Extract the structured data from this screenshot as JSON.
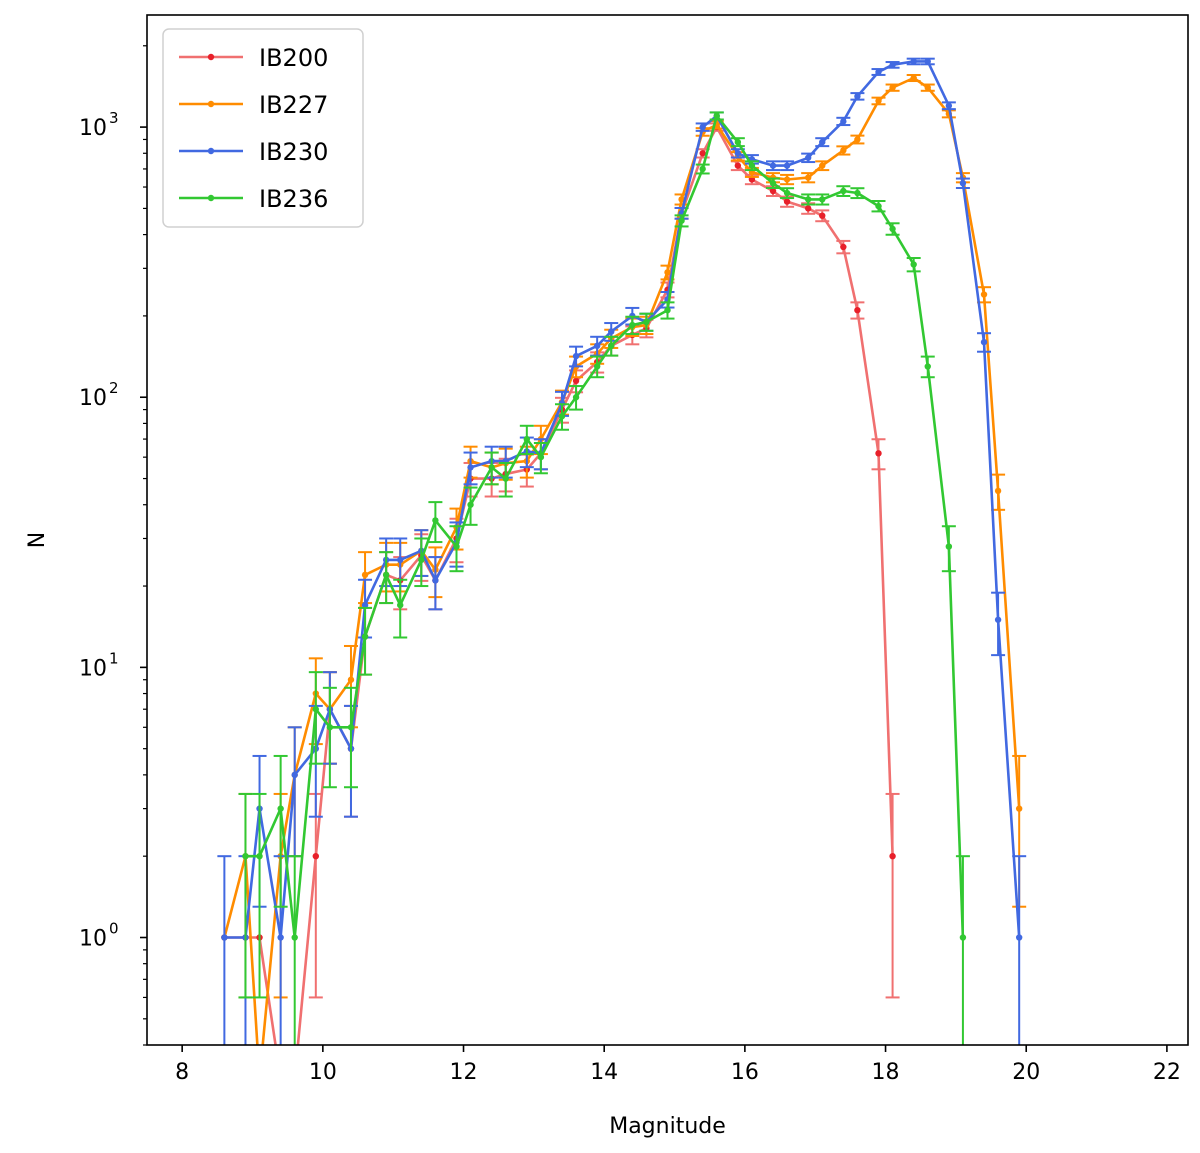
{
  "chart_data": {
    "type": "line",
    "title": "",
    "xlabel": "Magnitude",
    "ylabel": "N",
    "xlim": [
      7.5,
      22.3
    ],
    "ylim": [
      0.4,
      2600
    ],
    "yscale": "log",
    "grid": false,
    "legend_position": "top-left",
    "xticks": [
      "8",
      "10",
      "12",
      "14",
      "16",
      "18",
      "20",
      "22"
    ],
    "yticks": [
      {
        "value": 1,
        "base": "10",
        "exp": "0"
      },
      {
        "value": 10,
        "base": "10",
        "exp": "1"
      },
      {
        "value": 100,
        "base": "10",
        "exp": "2"
      },
      {
        "value": 1000,
        "base": "10",
        "exp": "3"
      }
    ],
    "series": [
      {
        "name": "IB200",
        "color": "#f07070",
        "marker_color": "#e8202a",
        "x": [
          8.6,
          8.9,
          9.1,
          9.4,
          9.6,
          9.9,
          10.1,
          10.4,
          10.6,
          10.9,
          11.1,
          11.4,
          11.6,
          11.9,
          12.1,
          12.4,
          12.6,
          12.9,
          13.1,
          13.4,
          13.6,
          13.9,
          14.1,
          14.4,
          14.6,
          14.9,
          15.1,
          15.4,
          15.6,
          15.9,
          16.1,
          16.4,
          16.6,
          16.9,
          17.1,
          17.4,
          17.6,
          17.9,
          18.1
        ],
        "y": [
          1,
          1,
          1,
          0.3,
          0.3,
          2,
          7,
          5,
          13,
          22,
          21,
          26,
          21,
          30,
          50,
          50,
          52,
          54,
          62,
          90,
          115,
          135,
          155,
          170,
          180,
          250,
          480,
          800,
          1000,
          720,
          640,
          580,
          530,
          500,
          470,
          360,
          210,
          62,
          2
        ],
        "y_err": [
          0,
          0,
          0,
          0,
          0,
          1.4,
          2.6,
          2.2,
          3.6,
          4.7,
          4.6,
          5.1,
          4.6,
          5.5,
          7.1,
          7.1,
          7.2,
          7.3,
          7.9,
          9.5,
          10.7,
          11.6,
          12.4,
          13.0,
          13.4,
          15.8,
          21.9,
          28.3,
          31.6,
          26.8,
          25.3,
          24.1,
          23.0,
          22.4,
          21.7,
          19.0,
          14.5,
          7.9,
          1.4
        ]
      },
      {
        "name": "IB227",
        "color": "#ff8c00",
        "marker_color": "#ff8c00",
        "x": [
          8.6,
          8.9,
          9.1,
          9.4,
          9.6,
          9.9,
          10.1,
          10.4,
          10.6,
          10.9,
          11.1,
          11.4,
          11.6,
          11.9,
          12.1,
          12.4,
          12.6,
          12.9,
          13.1,
          13.4,
          13.6,
          13.9,
          14.1,
          14.4,
          14.6,
          14.9,
          15.1,
          15.4,
          15.6,
          15.9,
          16.1,
          16.4,
          16.6,
          16.9,
          17.1,
          17.4,
          17.6,
          17.9,
          18.1,
          18.4,
          18.6,
          18.9,
          19.1,
          19.4,
          19.6,
          19.9
        ],
        "y": [
          1,
          2,
          0.3,
          2,
          4,
          8,
          7,
          9,
          22,
          24,
          24,
          27,
          23,
          33,
          58,
          55,
          57,
          58,
          70,
          96,
          130,
          145,
          165,
          182,
          185,
          290,
          540,
          960,
          1020,
          780,
          680,
          650,
          640,
          650,
          720,
          820,
          900,
          1250,
          1400,
          1520,
          1400,
          1120,
          650,
          240,
          45,
          3
        ],
        "y_err": [
          0,
          1.4,
          0,
          1.4,
          2,
          2.8,
          2.6,
          3,
          4.7,
          4.9,
          4.9,
          5.2,
          4.8,
          5.7,
          7.6,
          7.4,
          7.5,
          7.6,
          8.4,
          9.8,
          11.4,
          12,
          12.8,
          13.5,
          13.6,
          17,
          23.2,
          31,
          31.9,
          27.9,
          26.1,
          25.5,
          25.3,
          25.5,
          26.8,
          28.6,
          30,
          35.4,
          37.4,
          39,
          37.4,
          33.5,
          25.5,
          15.5,
          6.7,
          1.7
        ]
      },
      {
        "name": "IB230",
        "color": "#4169e1",
        "marker_color": "#4169e1",
        "x": [
          8.6,
          8.9,
          9.1,
          9.4,
          9.6,
          9.9,
          10.1,
          10.4,
          10.6,
          10.9,
          11.1,
          11.4,
          11.6,
          11.9,
          12.1,
          12.4,
          12.6,
          12.9,
          13.1,
          13.4,
          13.6,
          13.9,
          14.1,
          14.4,
          14.6,
          14.9,
          15.1,
          15.4,
          15.6,
          15.9,
          16.1,
          16.4,
          16.6,
          16.9,
          17.1,
          17.4,
          17.6,
          17.9,
          18.1,
          18.4,
          18.6,
          18.9,
          19.1,
          19.4,
          19.6,
          19.9
        ],
        "y": [
          1,
          1,
          3,
          1,
          4,
          5,
          7,
          5,
          17,
          25,
          25,
          27,
          21,
          29,
          55,
          58,
          58,
          63,
          62,
          95,
          142,
          155,
          175,
          200,
          190,
          230,
          480,
          1000,
          1100,
          800,
          760,
          720,
          720,
          770,
          880,
          1050,
          1300,
          1600,
          1700,
          1750,
          1750,
          1200,
          620,
          160,
          15,
          1
        ],
        "y_err": [
          1,
          1,
          1.7,
          1,
          2,
          2.2,
          2.6,
          2.2,
          4.1,
          5,
          5,
          5.2,
          4.6,
          5.4,
          7.4,
          7.6,
          7.6,
          7.9,
          7.9,
          9.7,
          11.9,
          12.4,
          13.2,
          14.1,
          13.8,
          15.2,
          21.9,
          31.6,
          33.2,
          28.3,
          27.6,
          26.8,
          26.8,
          27.7,
          29.7,
          32.4,
          36.1,
          40,
          41.2,
          41.8,
          41.8,
          34.6,
          24.9,
          12.6,
          3.9,
          1
        ]
      },
      {
        "name": "IB236",
        "color": "#32c832",
        "marker_color": "#32c832",
        "x": [
          8.9,
          9.1,
          9.4,
          9.6,
          9.9,
          10.1,
          10.4,
          10.6,
          10.9,
          11.1,
          11.4,
          11.6,
          11.9,
          12.1,
          12.4,
          12.6,
          12.9,
          13.1,
          13.4,
          13.6,
          13.9,
          14.1,
          14.4,
          14.6,
          14.9,
          15.1,
          15.4,
          15.6,
          15.9,
          16.1,
          16.4,
          16.6,
          16.9,
          17.1,
          17.4,
          17.6,
          17.9,
          18.1,
          18.4,
          18.6,
          18.9,
          19.1
        ],
        "y": [
          2,
          2,
          3,
          1,
          7,
          6,
          6,
          13,
          22,
          17,
          25,
          35,
          28,
          40,
          55,
          50,
          70,
          60,
          85,
          100,
          130,
          155,
          185,
          190,
          210,
          450,
          700,
          1100,
          880,
          720,
          620,
          570,
          540,
          540,
          580,
          570,
          510,
          420,
          310,
          130,
          28,
          1
        ],
        "y_err": [
          1.4,
          1.4,
          1.7,
          1,
          2.6,
          2.4,
          2.4,
          3.6,
          4.7,
          4.1,
          5,
          5.9,
          5.3,
          6.3,
          7.4,
          7.1,
          8.4,
          7.7,
          9.2,
          10,
          11.4,
          12.4,
          13.6,
          13.8,
          14.5,
          21.2,
          26.5,
          33.2,
          29.7,
          26.8,
          24.9,
          23.9,
          23.2,
          23.2,
          24.1,
          23.9,
          22.6,
          20.5,
          17.6,
          11.4,
          5.3,
          1
        ]
      }
    ]
  }
}
